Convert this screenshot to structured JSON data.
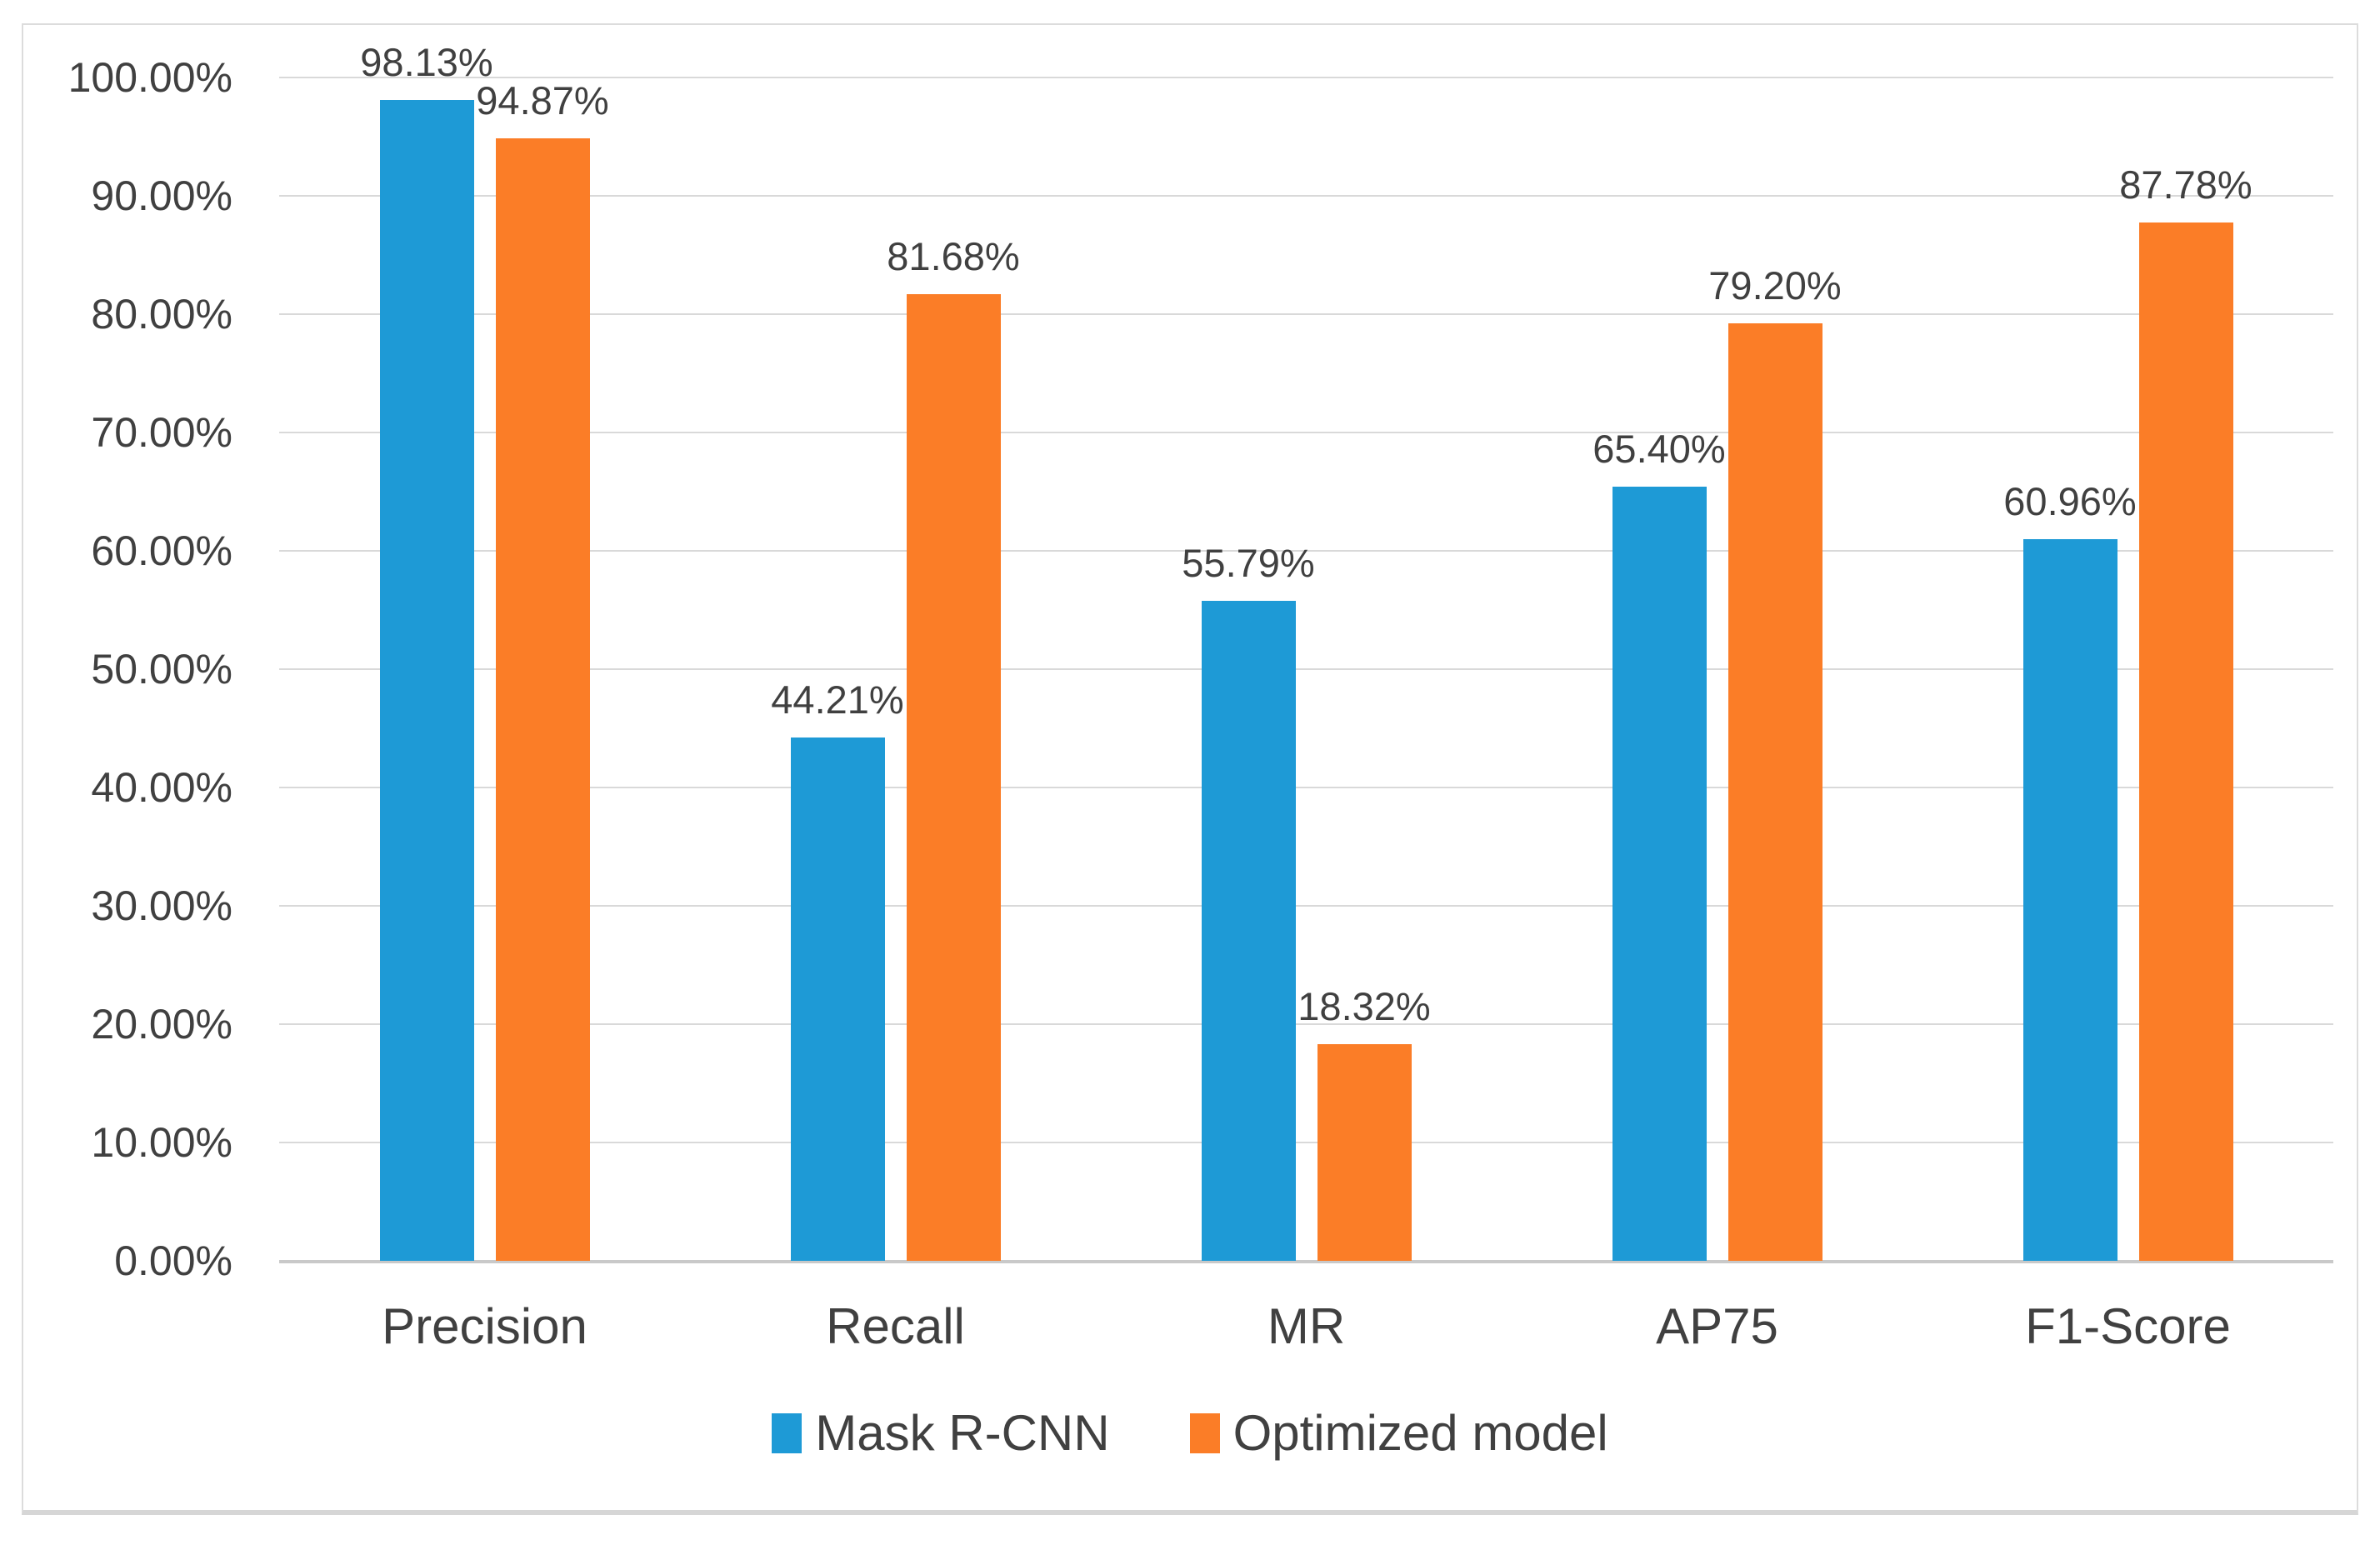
{
  "chart_data": {
    "type": "bar",
    "title": "",
    "xlabel": "",
    "ylabel": "",
    "categories": [
      "Precision",
      "Recall",
      "MR",
      "AP75",
      "F1-Score"
    ],
    "series": [
      {
        "name": "Mask R-CNN",
        "color": "#1E9AD6",
        "values": [
          98.13,
          44.21,
          55.79,
          65.4,
          60.96
        ],
        "data_labels": [
          "98.13%",
          "44.21%",
          "55.79%",
          "65.40%",
          "60.96%"
        ]
      },
      {
        "name": "Optimized model",
        "color": "#FB7D27",
        "values": [
          94.87,
          81.68,
          18.32,
          79.2,
          87.78
        ],
        "data_labels": [
          "94.87%",
          "81.68%",
          "18.32%",
          "79.20%",
          "87.78%"
        ]
      }
    ],
    "y_ticks": [
      "100.00%",
      "90.00%",
      "80.00%",
      "70.00%",
      "60.00%",
      "50.00%",
      "40.00%",
      "30.00%",
      "20.00%",
      "10.00%",
      "0.00%"
    ],
    "ylim": [
      0,
      100
    ],
    "grid": true,
    "legend_position": "bottom"
  },
  "colors": {
    "text": "#404040",
    "gridline": "#d9d9d9",
    "axis_line": "#c9c9c9",
    "frame_border": "#dcdcdc",
    "background": "#ffffff"
  }
}
